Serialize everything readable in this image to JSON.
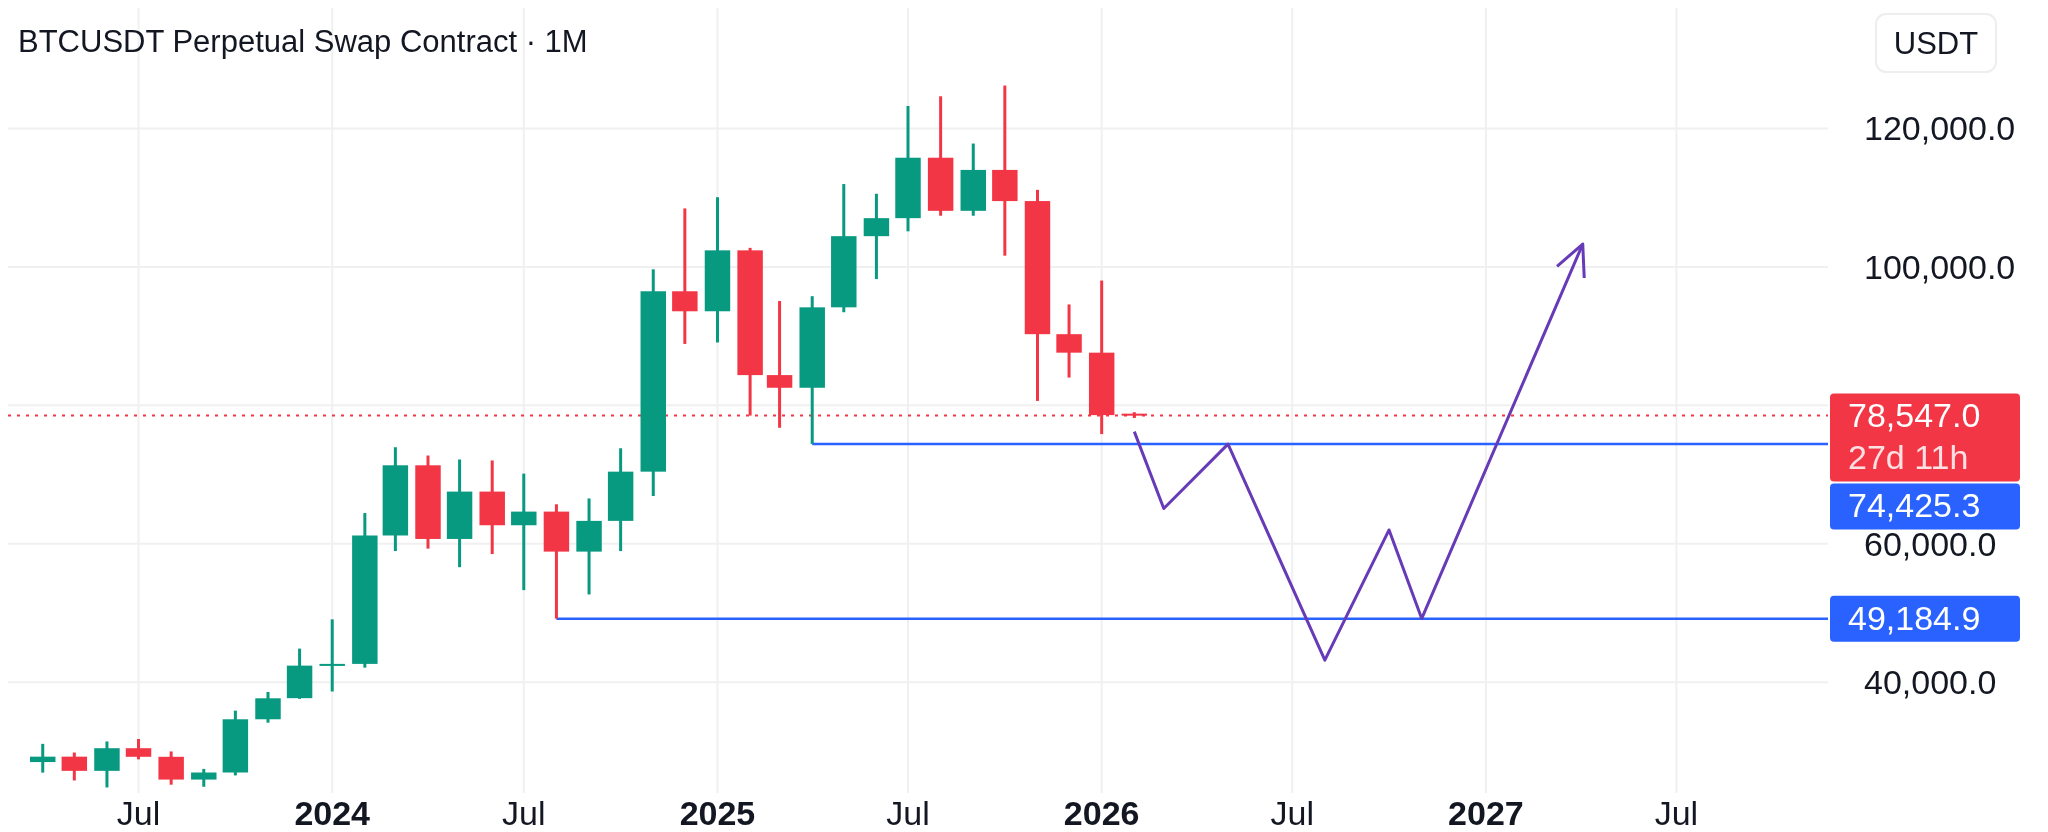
{
  "chart_data": {
    "type": "candlestick",
    "title": "BTCUSDT Perpetual Swap Contract · 1M",
    "ylabel": "USDT",
    "x": [
      "2023-04",
      "2023-05",
      "2023-06",
      "2023-07",
      "2023-08",
      "2023-09",
      "2023-10",
      "2023-11",
      "2023-12",
      "2024-01",
      "2024-02",
      "2024-03",
      "2024-04",
      "2024-05",
      "2024-06",
      "2024-07",
      "2024-08",
      "2024-09",
      "2024-10",
      "2024-11",
      "2024-12",
      "2025-01",
      "2025-02",
      "2025-03",
      "2025-04",
      "2025-05",
      "2025-06",
      "2025-07",
      "2025-08",
      "2025-09",
      "2025-10",
      "2025-11",
      "2025-12",
      "2026-01",
      "2026-02"
    ],
    "ohlc": [
      [
        28470,
        31100,
        26940,
        29250
      ],
      [
        29250,
        29850,
        25810,
        27200
      ],
      [
        27200,
        31450,
        24800,
        30470
      ],
      [
        30470,
        31800,
        28860,
        29230
      ],
      [
        29230,
        30000,
        25200,
        25940
      ],
      [
        25940,
        27480,
        24900,
        26960
      ],
      [
        26960,
        35900,
        26540,
        34650
      ],
      [
        34650,
        38590,
        34160,
        37680
      ],
      [
        37700,
        44860,
        37600,
        42400
      ],
      [
        42500,
        49090,
        38660,
        42650
      ],
      [
        42650,
        64440,
        42110,
        61200
      ],
      [
        61200,
        73950,
        58950,
        71340
      ],
      [
        71340,
        72750,
        59300,
        60700
      ],
      [
        60700,
        72180,
        56620,
        67540
      ],
      [
        67540,
        72040,
        58520,
        62680
      ],
      [
        62680,
        70140,
        53310,
        64650
      ],
      [
        64650,
        65710,
        49185,
        58870
      ],
      [
        58870,
        66550,
        52680,
        63310
      ],
      [
        63310,
        73800,
        58950,
        70420
      ],
      [
        70420,
        99650,
        66900,
        96480
      ],
      [
        96480,
        108450,
        88870,
        93590
      ],
      [
        93590,
        110070,
        89080,
        102390
      ],
      [
        102390,
        102750,
        78520,
        84370
      ],
      [
        84370,
        95070,
        76760,
        82540
      ],
      [
        82540,
        95770,
        74425,
        94160
      ],
      [
        94160,
        111970,
        93450,
        104440
      ],
      [
        104440,
        110560,
        98240,
        107040
      ],
      [
        107040,
        123240,
        105140,
        115770
      ],
      [
        115770,
        124650,
        107390,
        108100
      ],
      [
        108100,
        117820,
        107390,
        114010
      ],
      [
        114010,
        126200,
        101620,
        109510
      ],
      [
        109510,
        111130,
        80640,
        90280
      ],
      [
        90280,
        94580,
        84010,
        87610
      ],
      [
        87610,
        98030,
        75850,
        78590
      ],
      [
        78800,
        79010,
        78170,
        78547
      ]
    ],
    "colors": [
      "#089981",
      "#f23645",
      "#089981",
      "#f23645",
      "#f23645",
      "#089981",
      "#089981",
      "#089981",
      "#089981",
      "#089981",
      "#089981",
      "#089981",
      "#f23645",
      "#089981",
      "#f23645",
      "#089981",
      "#f23645",
      "#089981",
      "#089981",
      "#089981",
      "#f23645",
      "#089981",
      "#f23645",
      "#f23645",
      "#089981",
      "#089981",
      "#089981",
      "#089981",
      "#f23645",
      "#089981",
      "#f23645",
      "#f23645",
      "#f23645",
      "#f23645",
      "#f23645"
    ],
    "series": [
      {
        "type": "line",
        "color": "#2962ff",
        "x": [
          "2024-08",
          "2027-11-22"
        ],
        "values": [
          49184.9,
          49184.9
        ],
        "value_labels": [
          null,
          "49,184.9"
        ]
      },
      {
        "type": "line",
        "color": "#2962ff",
        "x": [
          "2025-04",
          "2027-11-22"
        ],
        "values": [
          74425.3,
          74425.3
        ],
        "value_labels": [
          null,
          "74,425.3"
        ]
      },
      {
        "type": "line",
        "color": "#673ab7",
        "x": [
          "2026-02-01",
          "2026-03-01",
          "2026-05-01",
          "2026-08-01",
          "2026-10-01",
          "2026-11-01",
          "2027-04-03"
        ],
        "values": [
          76200,
          65100,
          74400,
          43200,
          62000,
          49200,
          103300
        ]
      }
    ],
    "ref_lines": [
      {
        "axis": "y",
        "value": 78547,
        "label": "78,547.0",
        "color": "#f23645",
        "line_style": "dotted"
      }
    ],
    "annotations": [
      "27d 11h"
    ],
    "xlim": [
      "2023-02-27",
      "2027-11-22"
    ],
    "xticks": [
      {
        "value": "2023-07",
        "label": "Jul"
      },
      {
        "value": "2024",
        "label": "2024"
      },
      {
        "value": "2024-07",
        "label": "Jul"
      },
      {
        "value": "2025",
        "label": "2025"
      },
      {
        "value": "2025-07",
        "label": "Jul"
      },
      {
        "value": "2026",
        "label": "2026"
      },
      {
        "value": "2026-07",
        "label": "Jul"
      },
      {
        "value": "2027",
        "label": "2027"
      },
      {
        "value": "2027-07",
        "label": "Jul"
      }
    ],
    "ylim": [
      24000,
      137400
    ],
    "yticks": [
      {
        "value": 40000,
        "label": "40,000.0"
      },
      {
        "value": 60000,
        "label": "60,000.0"
      },
      {
        "value": 80000,
        "label": null
      },
      {
        "value": 100000,
        "label": "100,000.0"
      },
      {
        "value": 120000,
        "label": "120,000.0"
      }
    ],
    "grid": true
  }
}
